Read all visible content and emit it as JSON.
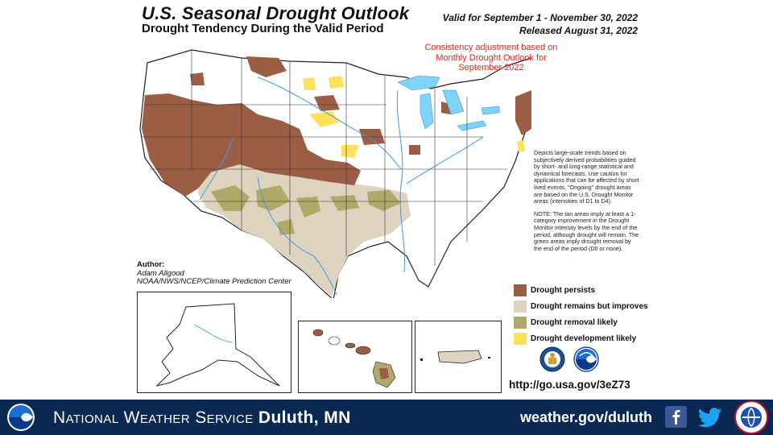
{
  "header": {
    "title": "U.S. Seasonal Drought Outlook",
    "subtitle": "Drought Tendency During the Valid Period",
    "valid_line": "Valid for September 1 - November 30, 2022",
    "released_line": "Released August 31, 2022"
  },
  "annotation": {
    "consistency_note": "Consistency adjustment based on Monthly Drought Outlook for September 2022"
  },
  "description": {
    "paragraph1": "Depicts large-scale trends based on subjectively derived probabilities guided by short- and long-range statistical and dynamical forecasts. Use caution for applications that can be affected by short lived events. \"Ongoing\" drought areas are based on the U.S. Drought Monitor areas (intensities of D1 to D4).",
    "paragraph2": "NOTE: The tan areas imply at least a 1-category improvement in the Drought Monitor intensity levels by the end of the period, although drought will remain. The green areas imply drought removal by the end of the period (D0 or none)."
  },
  "legend": [
    {
      "label": "Drought persists",
      "color": "#9b5d44"
    },
    {
      "label": "Drought remains but improves",
      "color": "#ddd3bf"
    },
    {
      "label": "Drought removal likely",
      "color": "#b1a968"
    },
    {
      "label": "Drought development likely",
      "color": "#ffe15a"
    }
  ],
  "author": {
    "label": "Author:",
    "name": "Adam Allgood",
    "org": "NOAA/NWS/NCEP/Climate Prediction Center"
  },
  "insets": [
    "Alaska",
    "Hawaii",
    "Puerto Rico"
  ],
  "link": {
    "url": "http://go.usa.gov/3eZ73"
  },
  "footer": {
    "office_prefix": "National Weather Service",
    "office_name": "Duluth, MN",
    "website": "weather.gov/duluth"
  },
  "colors": {
    "footer_bg": "#0a2952",
    "lake_blue": "#7fd3f4",
    "river_blue": "#3d9be9"
  }
}
